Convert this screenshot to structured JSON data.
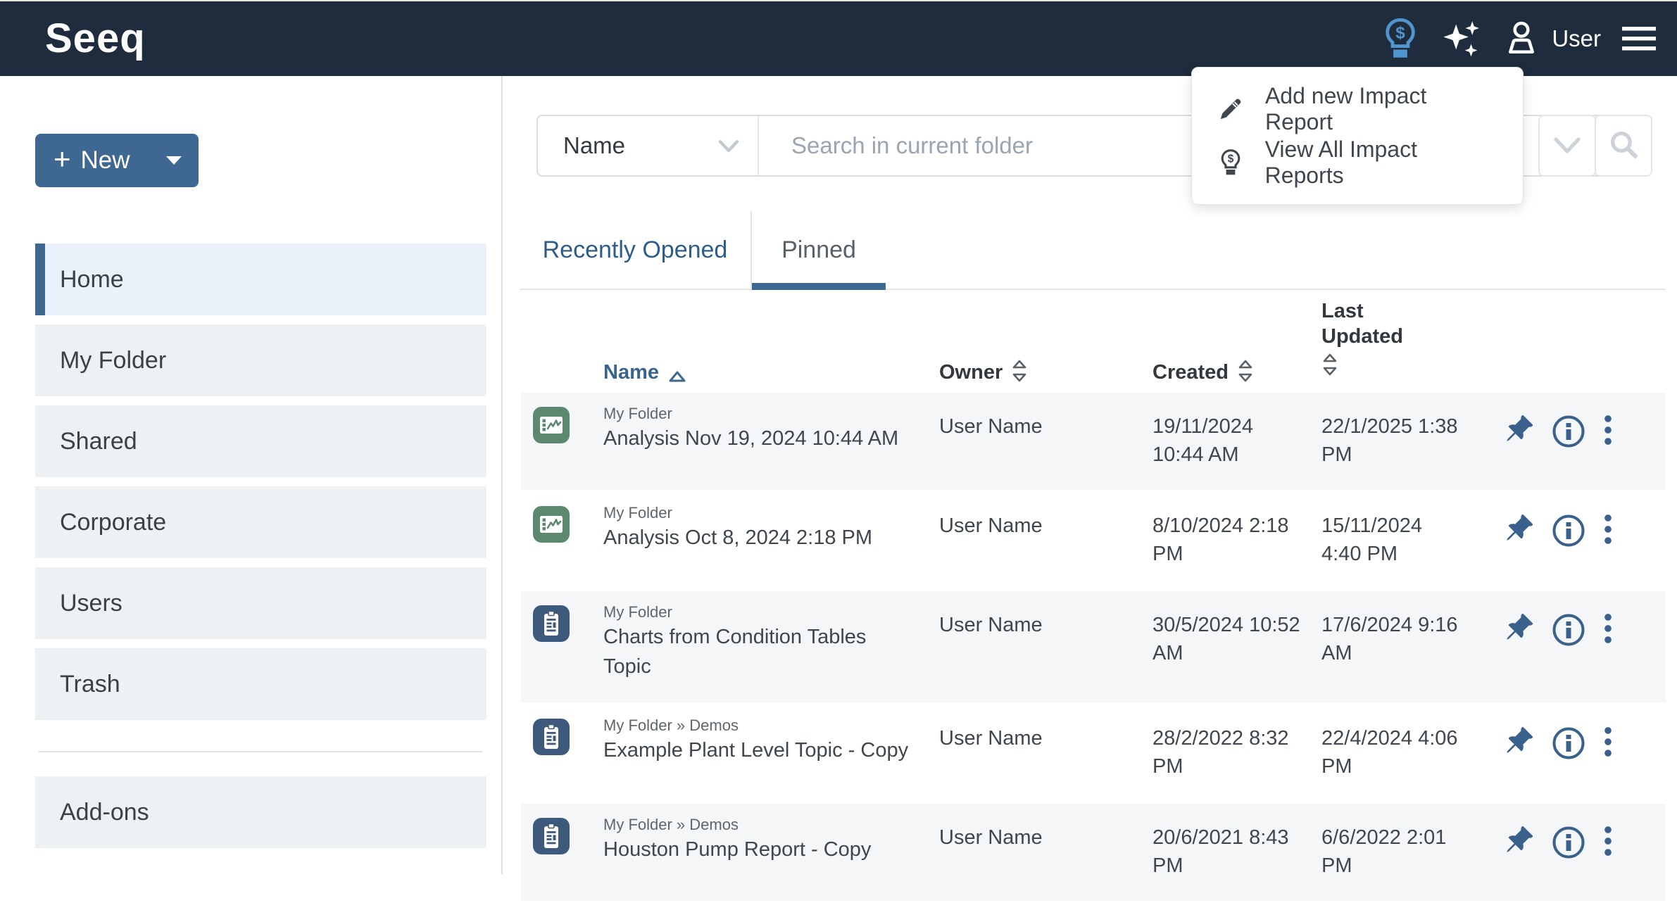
{
  "navbar": {
    "logo": "Seeq",
    "user_label": "User",
    "icons": [
      "impact-lightbulb-icon",
      "sparkles-icon",
      "user-icon",
      "hamburger-menu-icon"
    ]
  },
  "impact_menu": {
    "items": [
      {
        "icon": "pencil-icon",
        "label": "Add new Impact Report"
      },
      {
        "icon": "impact-lightbulb-icon",
        "label": "View All Impact Reports"
      }
    ]
  },
  "sidebar": {
    "new_button_label": "New",
    "sections": [
      [
        {
          "label": "Home",
          "active": true
        },
        {
          "label": "My Folder",
          "active": false
        },
        {
          "label": "Shared",
          "active": false
        },
        {
          "label": "Corporate",
          "active": false
        },
        {
          "label": "Users",
          "active": false
        },
        {
          "label": "Trash",
          "active": false
        }
      ],
      [
        {
          "label": "Add-ons",
          "active": false
        }
      ]
    ]
  },
  "search": {
    "filter_value": "Name",
    "placeholder": "Search in current folder",
    "buttons": [
      "chevron-down-icon",
      "search-icon"
    ]
  },
  "tabs": [
    {
      "label": "Recently Opened",
      "active": false
    },
    {
      "label": "Pinned",
      "active": true
    }
  ],
  "table": {
    "columns": [
      {
        "label": "Name",
        "sort": "asc"
      },
      {
        "label": "Owner",
        "sort": "none"
      },
      {
        "label": "Created",
        "sort": "none"
      },
      {
        "label": "Last Updated",
        "sort": "none"
      }
    ],
    "rows": [
      {
        "type": "analysis",
        "path": "My Folder",
        "name": "Analysis Nov 19, 2024 10:44 AM",
        "owner": "User Name",
        "created": "19/11/2024 10:44 AM",
        "updated": "22/1/2025 1:38 PM"
      },
      {
        "type": "analysis",
        "path": "My Folder",
        "name": "Analysis Oct 8, 2024 2:18 PM",
        "owner": "User Name",
        "created": "8/10/2024 2:18 PM",
        "updated": "15/11/2024 4:40 PM"
      },
      {
        "type": "topic",
        "path": "My Folder",
        "name": "Charts from Condition Tables Topic",
        "owner": "User Name",
        "created": "30/5/2024 10:52 AM",
        "updated": "17/6/2024 9:16 AM"
      },
      {
        "type": "topic",
        "path": "My Folder » Demos",
        "name": "Example Plant Level Topic - Copy",
        "owner": "User Name",
        "created": "28/2/2022 8:32 PM",
        "updated": "22/4/2024 4:06 PM"
      },
      {
        "type": "topic",
        "path": "My Folder » Demos",
        "name": "Houston Pump Report - Copy",
        "owner": "User Name",
        "created": "20/6/2021 8:43 PM",
        "updated": "6/6/2022 2:01 PM"
      }
    ],
    "row_actions": [
      "pin-icon",
      "info-icon",
      "kebab-menu-icon"
    ]
  },
  "colors": {
    "navbar_bg": "#1e2c3d",
    "accent_blue": "#3e6792",
    "link_blue": "#2e5d8a",
    "highlight_light_blue": "#5195ce",
    "analysis_green": "#5d8870",
    "topic_blue": "#3d5a7d",
    "action_icon_blue": "#3a608c",
    "row_stripe": "#f5f6f7",
    "sidebar_item_bg": "#eef1f4",
    "sidebar_active_bg": "#ebf1fa"
  }
}
